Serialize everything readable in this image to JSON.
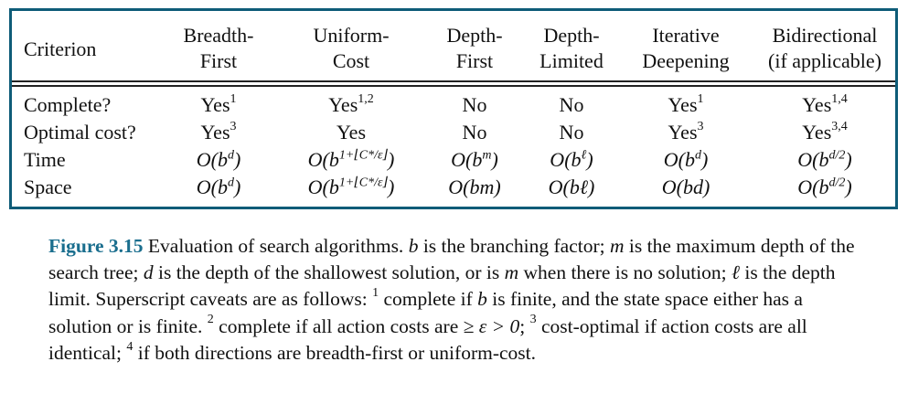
{
  "table": {
    "corner": "Criterion",
    "columns": [
      {
        "line1": "Breadth-",
        "line2": "First"
      },
      {
        "line1": "Uniform-",
        "line2": "Cost"
      },
      {
        "line1": "Depth-",
        "line2": "First"
      },
      {
        "line1": "Depth-",
        "line2": "Limited"
      },
      {
        "line1": "Iterative",
        "line2": "Deepening"
      },
      {
        "line1": "Bidirectional",
        "line2": "(if applicable)"
      }
    ],
    "rows": [
      {
        "label": "Complete?",
        "cells": [
          {
            "text": "Yes",
            "sup": "1"
          },
          {
            "text": "Yes",
            "sup": "1,2"
          },
          {
            "text": "No",
            "sup": ""
          },
          {
            "text": "No",
            "sup": ""
          },
          {
            "text": "Yes",
            "sup": "1"
          },
          {
            "text": "Yes",
            "sup": "1,4"
          }
        ]
      },
      {
        "label": "Optimal cost?",
        "cells": [
          {
            "text": "Yes",
            "sup": "3"
          },
          {
            "text": "Yes",
            "sup": ""
          },
          {
            "text": "No",
            "sup": ""
          },
          {
            "text": "No",
            "sup": ""
          },
          {
            "text": "Yes",
            "sup": "3"
          },
          {
            "text": "Yes",
            "sup": "3,4"
          }
        ]
      },
      {
        "label": "Time",
        "cells": [
          {
            "base": "O(b",
            "exp": "d",
            "close": ")"
          },
          {
            "base": "O(b",
            "exp": "1+⌊C*/ε⌋",
            "close": ")"
          },
          {
            "base": "O(b",
            "exp": "m",
            "close": ")"
          },
          {
            "base": "O(b",
            "exp": "ℓ",
            "close": ")"
          },
          {
            "base": "O(b",
            "exp": "d",
            "close": ")"
          },
          {
            "base": "O(b",
            "exp": "d/2",
            "close": ")"
          }
        ]
      },
      {
        "label": "Space",
        "cells": [
          {
            "base": "O(b",
            "exp": "d",
            "close": ")"
          },
          {
            "base": "O(b",
            "exp": "1+⌊C*/ε⌋",
            "close": ")"
          },
          {
            "base": "O(bm)",
            "exp": "",
            "close": ""
          },
          {
            "base": "O(bℓ)",
            "exp": "",
            "close": ""
          },
          {
            "base": "O(bd)",
            "exp": "",
            "close": ""
          },
          {
            "base": "O(b",
            "exp": "d/2",
            "close": ")"
          }
        ]
      }
    ]
  },
  "caption": {
    "label": "Figure 3.15",
    "p1": " Evaluation of search algorithms. ",
    "b": "b",
    "p2": " is the branching factor; ",
    "m": "m",
    "p3": " is the maximum depth of the search tree; ",
    "d": "d",
    "p4": " is the depth of the shallowest solution, or is ",
    "m2": "m",
    "p5": " when there is no solution; ",
    "l": "ℓ",
    "p6": " is the depth limit. Superscript caveats are as follows: ",
    "s1": "1",
    "p7": " complete if ",
    "b2": "b",
    "p8": " is finite, and the state space either has a solution or is finite. ",
    "s2": "2",
    "p9": " complete if all action costs are ",
    "ineq": "≥ ε > 0",
    "p10": "; ",
    "s3": "3",
    "p11": " cost-optimal if action costs are all identical; ",
    "s4": "4",
    "p12": " if both directions are breadth-first or uniform-cost."
  }
}
